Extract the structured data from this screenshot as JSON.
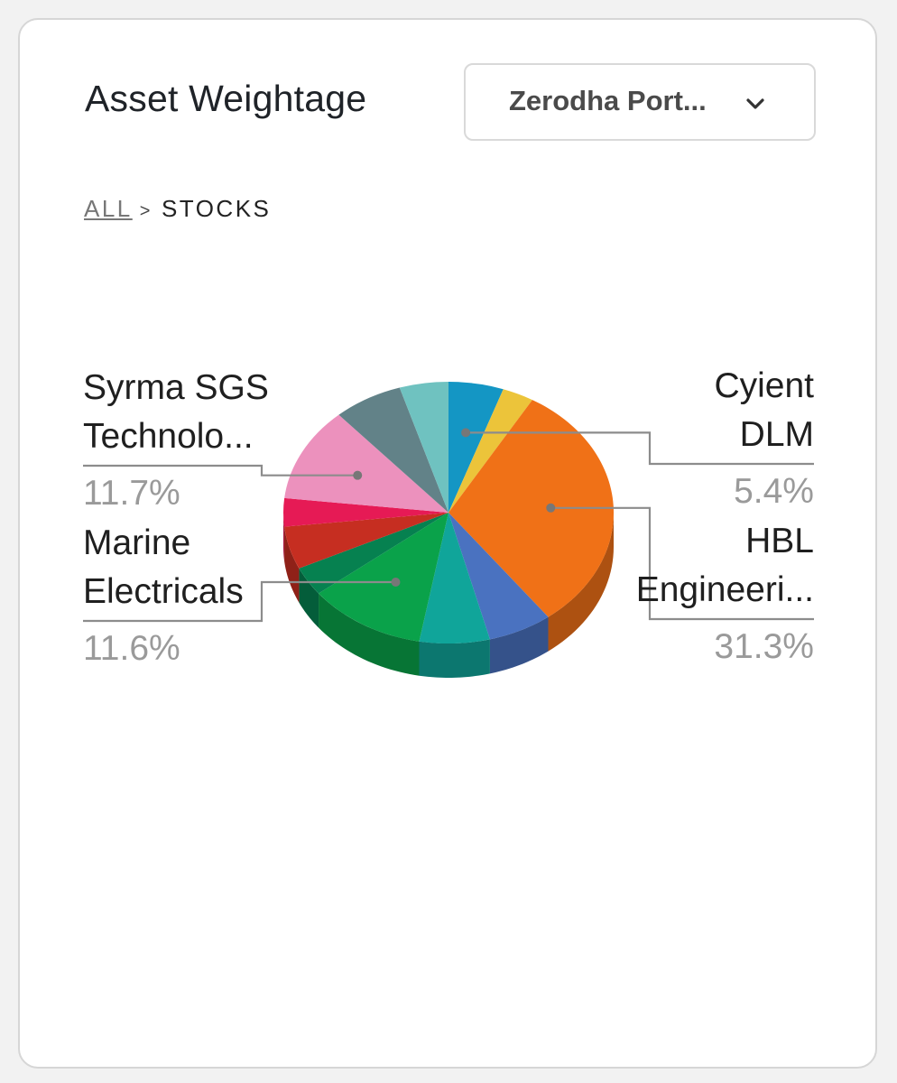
{
  "header": {
    "title": "Asset Weightage",
    "portfolio_select": {
      "selected": "Zerodha Port..."
    }
  },
  "breadcrumb": {
    "root": "ALL",
    "separator": ">",
    "current": "STOCKS"
  },
  "icons": {
    "dropdown": "chevron-down-icon"
  },
  "chart_data": {
    "type": "pie",
    "style": "3d",
    "start_angle_deg": 0,
    "slices": [
      {
        "name": "Cyient DLM",
        "value": 5.4,
        "color": "#1496c4",
        "label": "Cyient\nDLM",
        "pct_label": "5.4%",
        "side": "right-top"
      },
      {
        "name": "",
        "value": 3.1,
        "color": "#ecc43a"
      },
      {
        "name": "HBL Engineeri...",
        "value": 31.3,
        "color": "#f07117",
        "label": "HBL\nEngineeri...",
        "pct_label": "31.3%",
        "side": "right-bottom"
      },
      {
        "name": "",
        "value": 6.3,
        "color": "#4a72c0"
      },
      {
        "name": "",
        "value": 6.9,
        "color": "#10a59a"
      },
      {
        "name": "Marine Electricals",
        "value": 11.6,
        "color": "#0aa24a",
        "label": "Marine\nElectricals",
        "pct_label": "11.6%",
        "side": "left-bottom"
      },
      {
        "name": "",
        "value": 3.6,
        "color": "#068150"
      },
      {
        "name": "",
        "value": 5.3,
        "color": "#c62e21"
      },
      {
        "name": "",
        "value": 3.5,
        "color": "#e61a55"
      },
      {
        "name": "Syrma SGS Technolo...",
        "value": 11.7,
        "color": "#ec91bd",
        "label": "Syrma SGS\nTechnolo...",
        "pct_label": "11.7%",
        "side": "left-top"
      },
      {
        "name": "",
        "value": 6.8,
        "color": "#628288"
      },
      {
        "name": "",
        "value": 4.8,
        "color": "#6fc2c0"
      }
    ]
  }
}
